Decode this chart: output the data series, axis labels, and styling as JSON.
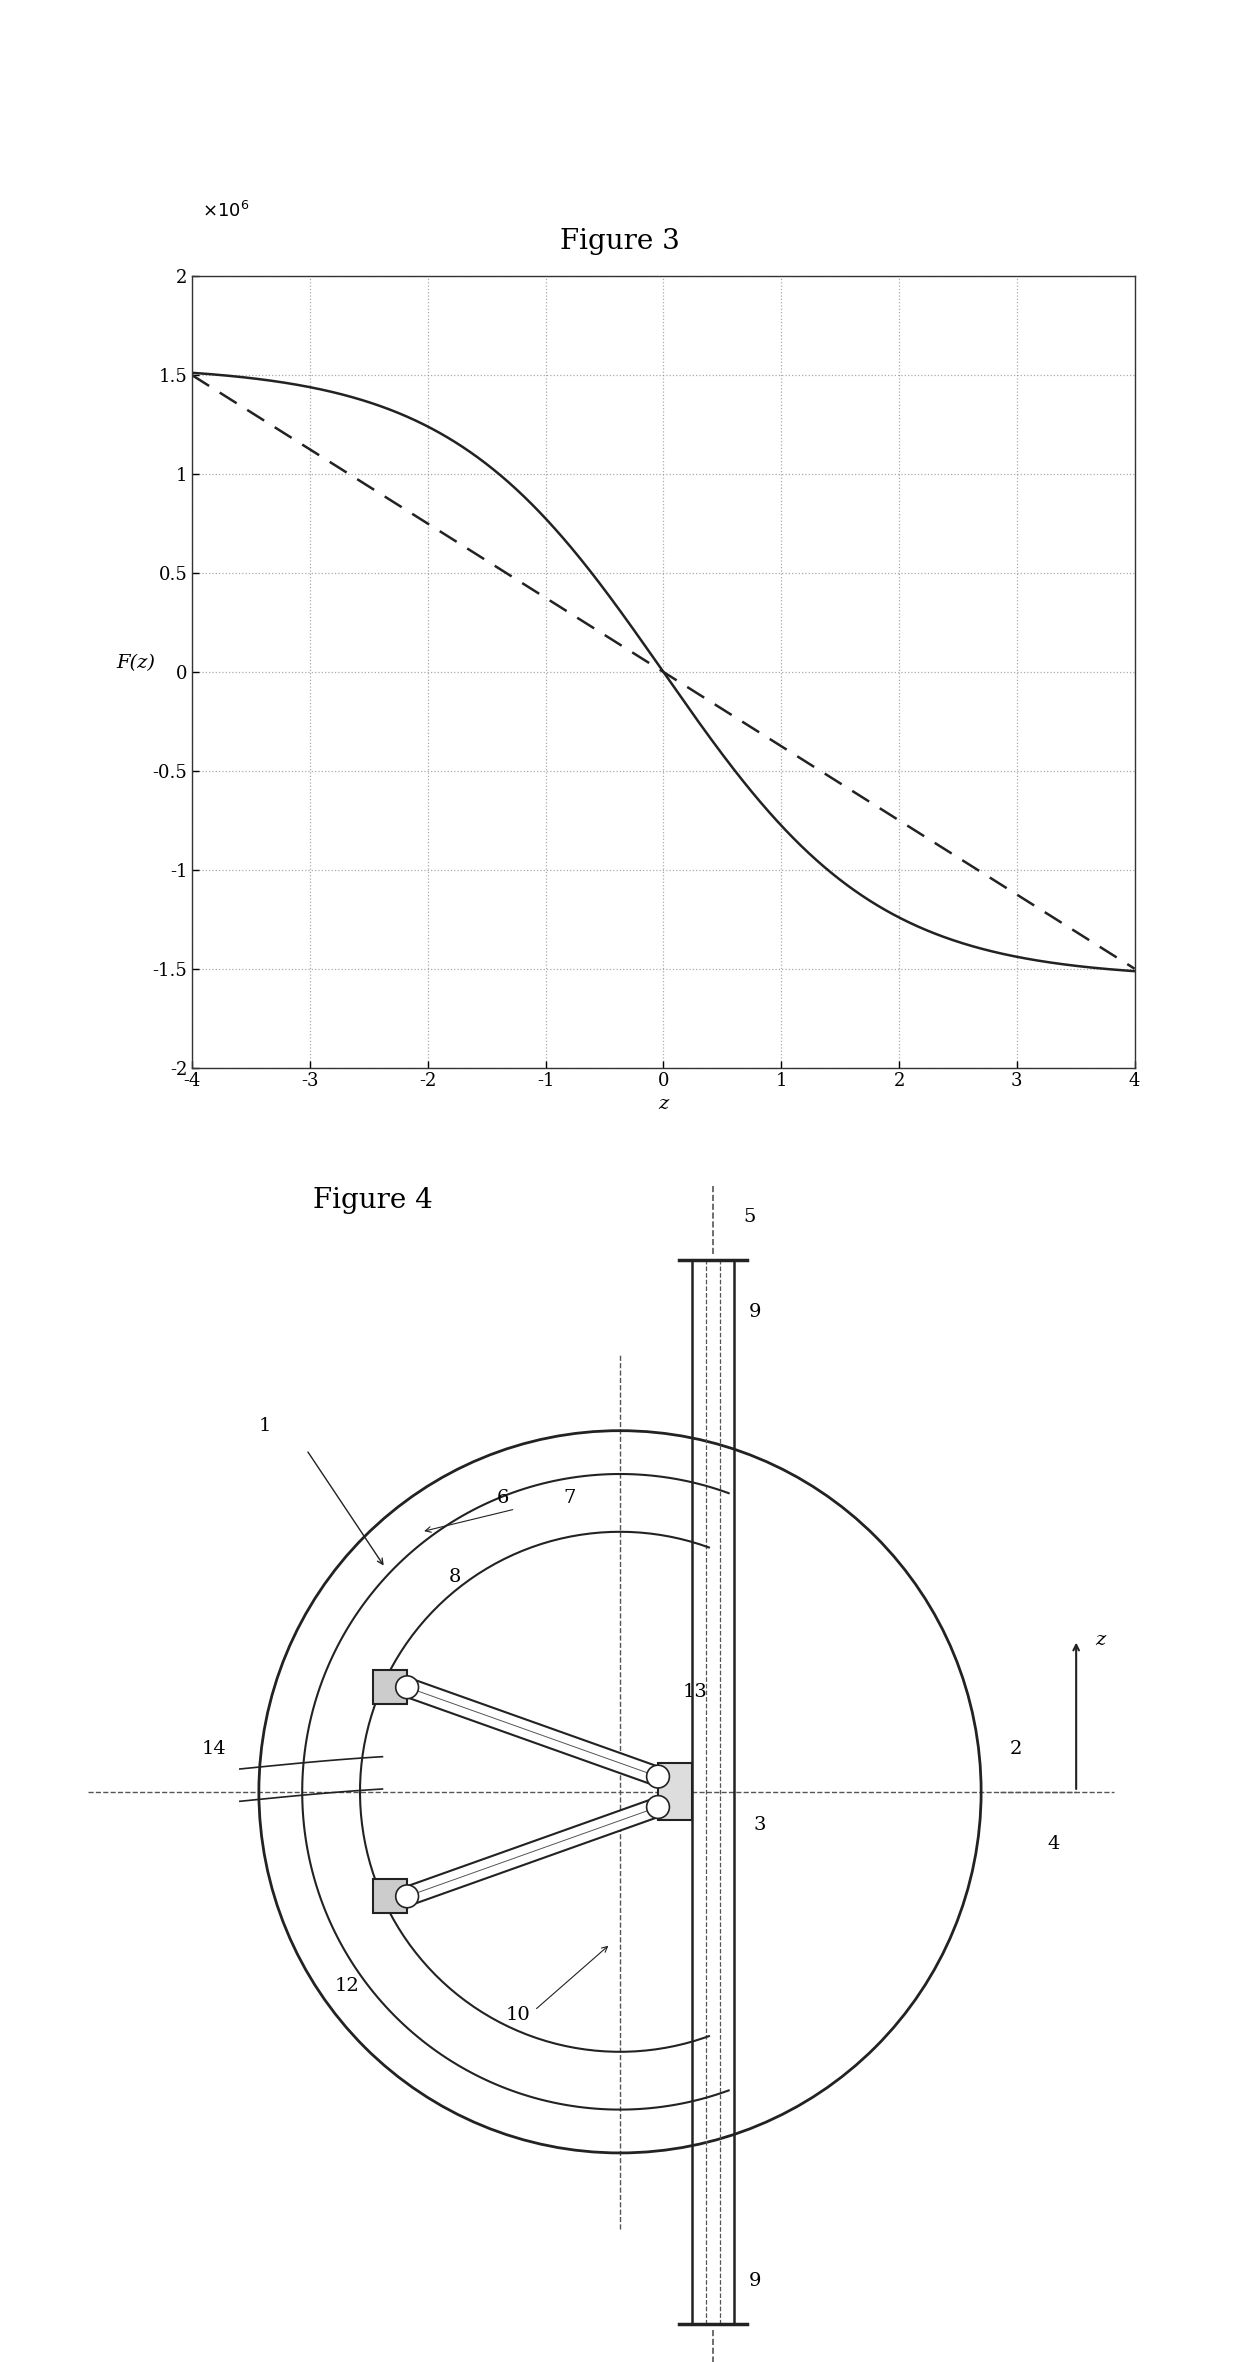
{
  "fig3_title": "Figure 3",
  "fig4_title": "Figure 4",
  "xlabel": "z",
  "ylabel": "F(z)",
  "xlim": [
    -4,
    4
  ],
  "ylim": [
    -2,
    2
  ],
  "xticks": [
    -4,
    -3,
    -2,
    -1,
    0,
    1,
    2,
    3,
    4
  ],
  "yticks": [
    -2,
    -1.5,
    -1,
    -0.5,
    0,
    0.5,
    1,
    1.5,
    2
  ],
  "solid_A": 1.55,
  "solid_B": 0.55,
  "dashed_k": 0.375,
  "grid_color": "#888888",
  "line_color": "#222222",
  "bg_color": "#ffffff",
  "fig_title_fontsize": 20,
  "axis_label_fontsize": 14,
  "tick_fontsize": 13,
  "diagram_label_fontsize": 14
}
